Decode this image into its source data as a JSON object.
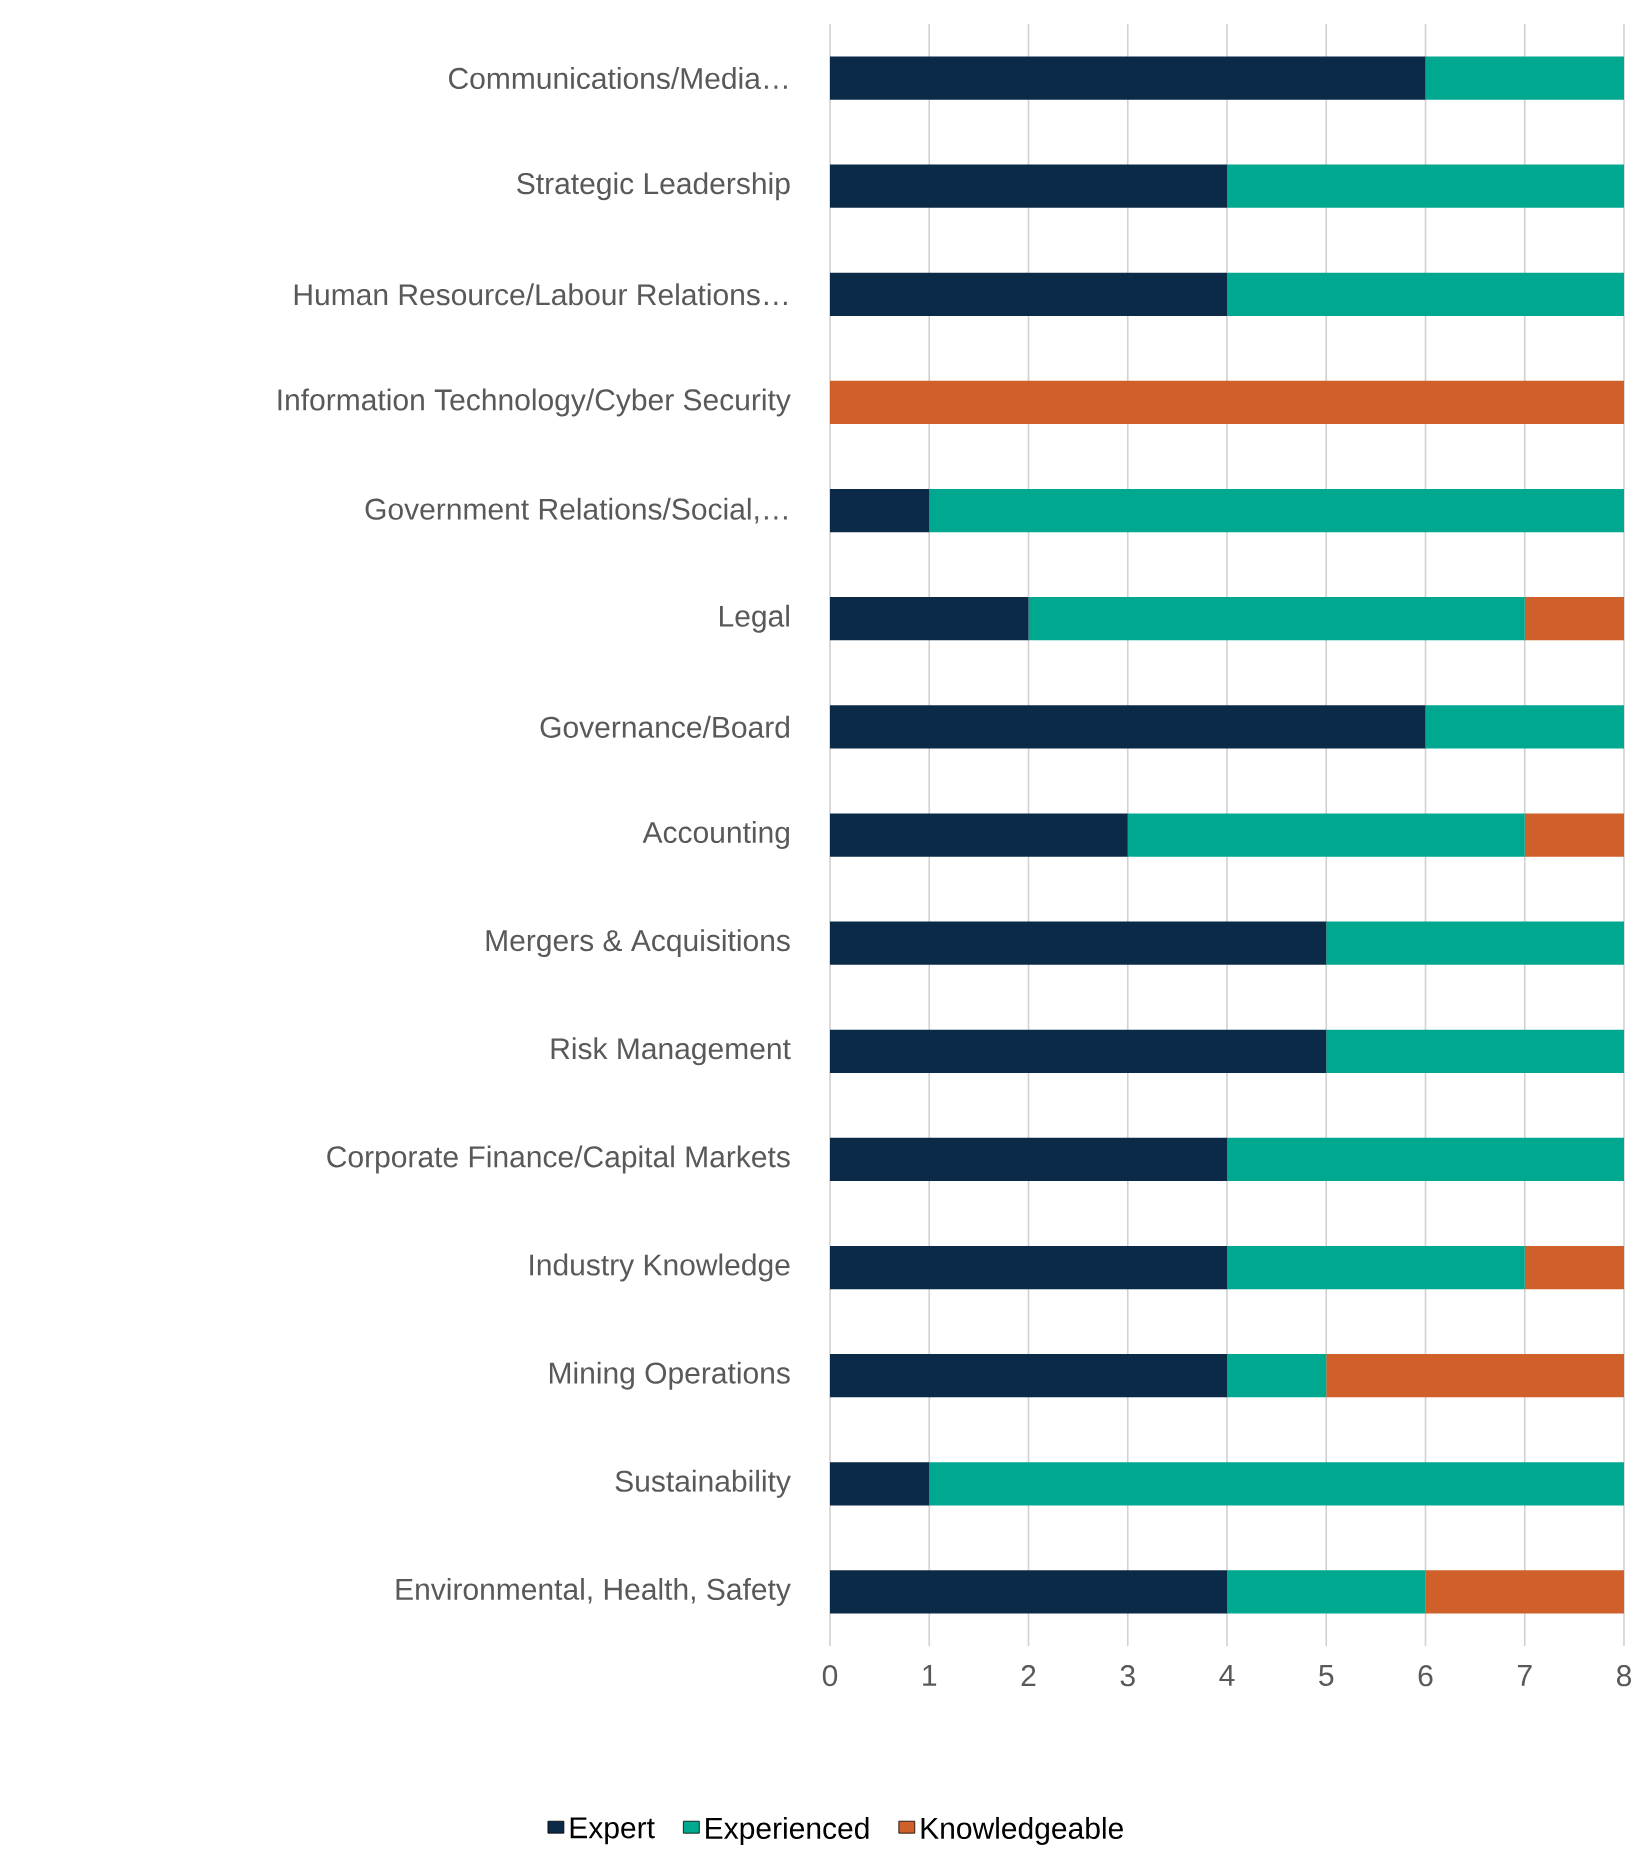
{
  "chart_data": {
    "type": "bar",
    "orientation": "horizontal",
    "stacked": true,
    "categories": [
      "Communications/Media…",
      "Strategic Leadership",
      "Human Resource/Labour Relations…",
      "Information Technology/Cyber Security",
      "Government Relations/Social,…",
      "Legal",
      "Governance/Board",
      "Accounting",
      "Mergers & Acquisitions",
      "Risk Management",
      "Corporate Finance/Capital Markets",
      "Industry Knowledge",
      "Mining Operations",
      "Sustainability",
      "Environmental, Health, Safety"
    ],
    "series": [
      {
        "name": "Expert",
        "color": "#0b2a47",
        "values": [
          6,
          4,
          4,
          0,
          1,
          2,
          6,
          3,
          5,
          5,
          4,
          4,
          4,
          1,
          4
        ]
      },
      {
        "name": "Experienced",
        "color": "#00a88f",
        "values": [
          2,
          4,
          4,
          0,
          7,
          5,
          2,
          4,
          3,
          3,
          4,
          3,
          1,
          7,
          2
        ]
      },
      {
        "name": "Knowledgeable",
        "color": "#d0602a",
        "values": [
          0,
          0,
          0,
          8,
          0,
          1,
          0,
          1,
          0,
          0,
          0,
          1,
          3,
          0,
          2
        ]
      }
    ],
    "xlim": [
      0,
      8
    ],
    "xticks": [
      0,
      1,
      2,
      3,
      4,
      5,
      6,
      7,
      8
    ],
    "grid": "x",
    "legend": "bottom"
  }
}
